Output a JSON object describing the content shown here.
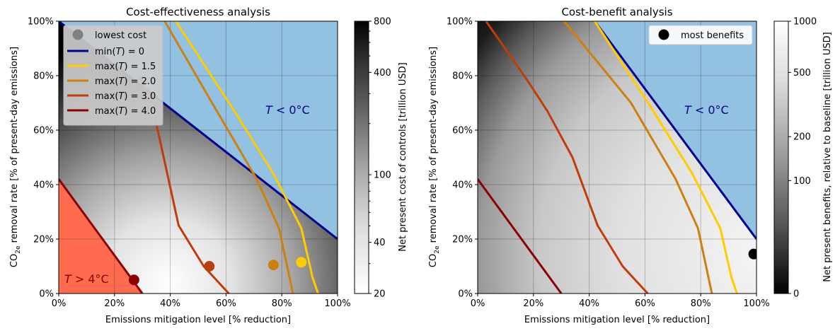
{
  "chart_data": [
    {
      "type": "heatmap",
      "title": "Cost-effectiveness analysis",
      "xlabel": "Emissions mitigation level [% reduction]",
      "ylabel_main": "CO",
      "ylabel_sub": "2e",
      "ylabel_rest": " removal rate [% of present-day emissions]",
      "x_ticks": [
        "0%",
        "20%",
        "40%",
        "60%",
        "80%",
        "100%"
      ],
      "y_ticks": [
        "0%",
        "20%",
        "40%",
        "60%",
        "80%",
        "100%"
      ],
      "xlim": [
        0,
        100
      ],
      "ylim": [
        0,
        100
      ],
      "colorbar": {
        "label": "Net present cost of controls [trillion USD]",
        "scale": "log",
        "range": [
          20,
          800
        ],
        "ticks": [
          "20",
          "40",
          "100",
          "400",
          "800"
        ],
        "colormap": "white-to-black"
      },
      "regions": [
        {
          "label": "T < 0°C",
          "color": "#93c1e1"
        },
        {
          "label": "T > 4°C",
          "color": "#ff6b4f"
        }
      ],
      "series": [
        {
          "name": "lowest cost",
          "kind": "marker",
          "color": "#808080"
        },
        {
          "name": "min(T) = 0",
          "color": "#00008b",
          "x": [
            0,
            100
          ],
          "y": [
            100,
            20
          ]
        },
        {
          "name": "max(T) = 1.5",
          "color": "#ffcc00",
          "x": [
            42,
            63,
            77,
            87,
            91,
            93
          ],
          "y": [
            100,
            67,
            44,
            24,
            6,
            0
          ]
        },
        {
          "name": "max(T) = 2.0",
          "color": "#cd8010",
          "x": [
            38,
            55,
            71,
            79,
            84
          ],
          "y": [
            100,
            70,
            42,
            24,
            0
          ]
        },
        {
          "name": "max(T) = 3.0",
          "color": "#c03c0c",
          "x": [
            29,
            34,
            43,
            52,
            61
          ],
          "y": [
            80,
            67,
            25,
            10,
            0
          ]
        },
        {
          "name": "max(T) = 4.0",
          "color": "#8b0000",
          "x": [
            0,
            30
          ],
          "y": [
            42,
            0
          ]
        }
      ],
      "optima": [
        {
          "x": 27,
          "y": 5,
          "color": "#8b0000"
        },
        {
          "x": 54,
          "y": 10,
          "color": "#b8400c"
        },
        {
          "x": 77,
          "y": 10.5,
          "color": "#cd8010"
        },
        {
          "x": 87,
          "y": 11.5,
          "color": "#ffcc00"
        }
      ],
      "annotations": [
        {
          "text_main": "T",
          "text_op": " < 0°C",
          "color": "#00008b"
        },
        {
          "text_main": "T",
          "text_op": " > 4°C",
          "color": "#8b0000"
        }
      ],
      "legend_position": "upper-left"
    },
    {
      "type": "heatmap",
      "title": "Cost-benefit analysis",
      "xlabel": "Emissions mitigation level [% reduction]",
      "ylabel_main": "CO",
      "ylabel_sub": "2e",
      "ylabel_rest": " removal rate [% of present-day emissions]",
      "x_ticks": [
        "0%",
        "20%",
        "40%",
        "60%",
        "80%",
        "100%"
      ],
      "y_ticks": [
        "0%",
        "20%",
        "40%",
        "60%",
        "80%",
        "100%"
      ],
      "xlim": [
        0,
        100
      ],
      "ylim": [
        0,
        100
      ],
      "colorbar": {
        "label": "Net present benefits, relative to baseline [trillion USD]",
        "scale": "symlog",
        "range": [
          0,
          1000
        ],
        "ticks": [
          "0",
          "100",
          "200",
          "500",
          "1000"
        ],
        "colormap": "black-to-white"
      },
      "regions": [
        {
          "label": "T < 0°C",
          "color": "#93c1e1"
        }
      ],
      "series": [
        {
          "name": "most benefits",
          "kind": "marker",
          "color": "#000000"
        },
        {
          "name": "min(T) = 0",
          "color": "#00008b",
          "x": [
            42,
            100
          ],
          "y": [
            100,
            20
          ]
        },
        {
          "name": "max(T) = 1.5",
          "color": "#ffcc00",
          "x": [
            42,
            63,
            77,
            87,
            91,
            93
          ],
          "y": [
            100,
            67,
            44,
            24,
            6,
            0
          ]
        },
        {
          "name": "max(T) = 2.0",
          "color": "#cd8010",
          "x": [
            31,
            55,
            71,
            79,
            84
          ],
          "y": [
            100,
            70,
            42,
            24,
            0
          ]
        },
        {
          "name": "max(T) = 3.0",
          "color": "#c03c0c",
          "x": [
            3,
            18,
            25,
            34,
            43,
            52,
            61
          ],
          "y": [
            100,
            78,
            67,
            50,
            25,
            10,
            0
          ]
        },
        {
          "name": "max(T) = 4.0",
          "color": "#8b0000",
          "x": [
            0,
            30
          ],
          "y": [
            42,
            0
          ]
        }
      ],
      "optima": [
        {
          "x": 99,
          "y": 14.5,
          "color": "#000000"
        }
      ],
      "annotations": [
        {
          "text_main": "T",
          "text_op": " < 0°C",
          "color": "#00008b"
        }
      ],
      "legend_position": "upper-right"
    }
  ],
  "legend_lines": [
    {
      "func": "min",
      "value": "0",
      "color": "#00008b"
    },
    {
      "func": "max",
      "value": "1.5",
      "color": "#ffcc00"
    },
    {
      "func": "max",
      "value": "2.0",
      "color": "#cd8010"
    },
    {
      "func": "max",
      "value": "3.0",
      "color": "#c03c0c"
    },
    {
      "func": "max",
      "value": "4.0",
      "color": "#8b0000"
    }
  ]
}
